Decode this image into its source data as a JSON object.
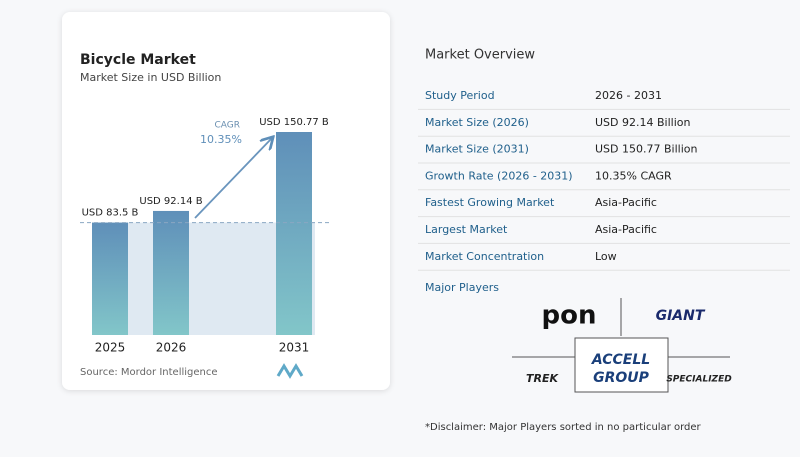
{
  "chart_data": {
    "type": "bar",
    "title": "Bicycle Market",
    "subtitle": "Market Size in USD Billion",
    "categories": [
      "2025",
      "2026",
      "2031"
    ],
    "values": [
      83.5,
      92.14,
      150.77
    ],
    "value_labels": [
      "USD 83.5 B",
      "USD 92.14 B",
      "USD 150.77 B"
    ],
    "annotation": {
      "label": "CAGR",
      "value": "10.35%"
    },
    "source": "Source:  Mordor Intelligence"
  },
  "overview": {
    "title": "Market Overview",
    "rows": [
      [
        "Study Period",
        "2026 - 2031"
      ],
      [
        "Market Size (2026)",
        "USD 92.14 Billion"
      ],
      [
        "Market Size (2031)",
        "USD 150.77 Billion"
      ],
      [
        "Growth Rate (2026 - 2031)",
        "10.35% CAGR"
      ],
      [
        "Fastest Growing Market",
        "Asia-Pacific"
      ],
      [
        "Largest Market",
        "Asia-Pacific"
      ],
      [
        "Market Concentration",
        "Low"
      ]
    ]
  },
  "players": {
    "title": "Major Players",
    "logos": [
      "pon",
      "GIANT",
      "ACCELL",
      "GROUP",
      "TREK",
      "SPECIALIZED"
    ]
  },
  "disclaimer": "*Disclaimer: Major Players sorted in no particular order"
}
